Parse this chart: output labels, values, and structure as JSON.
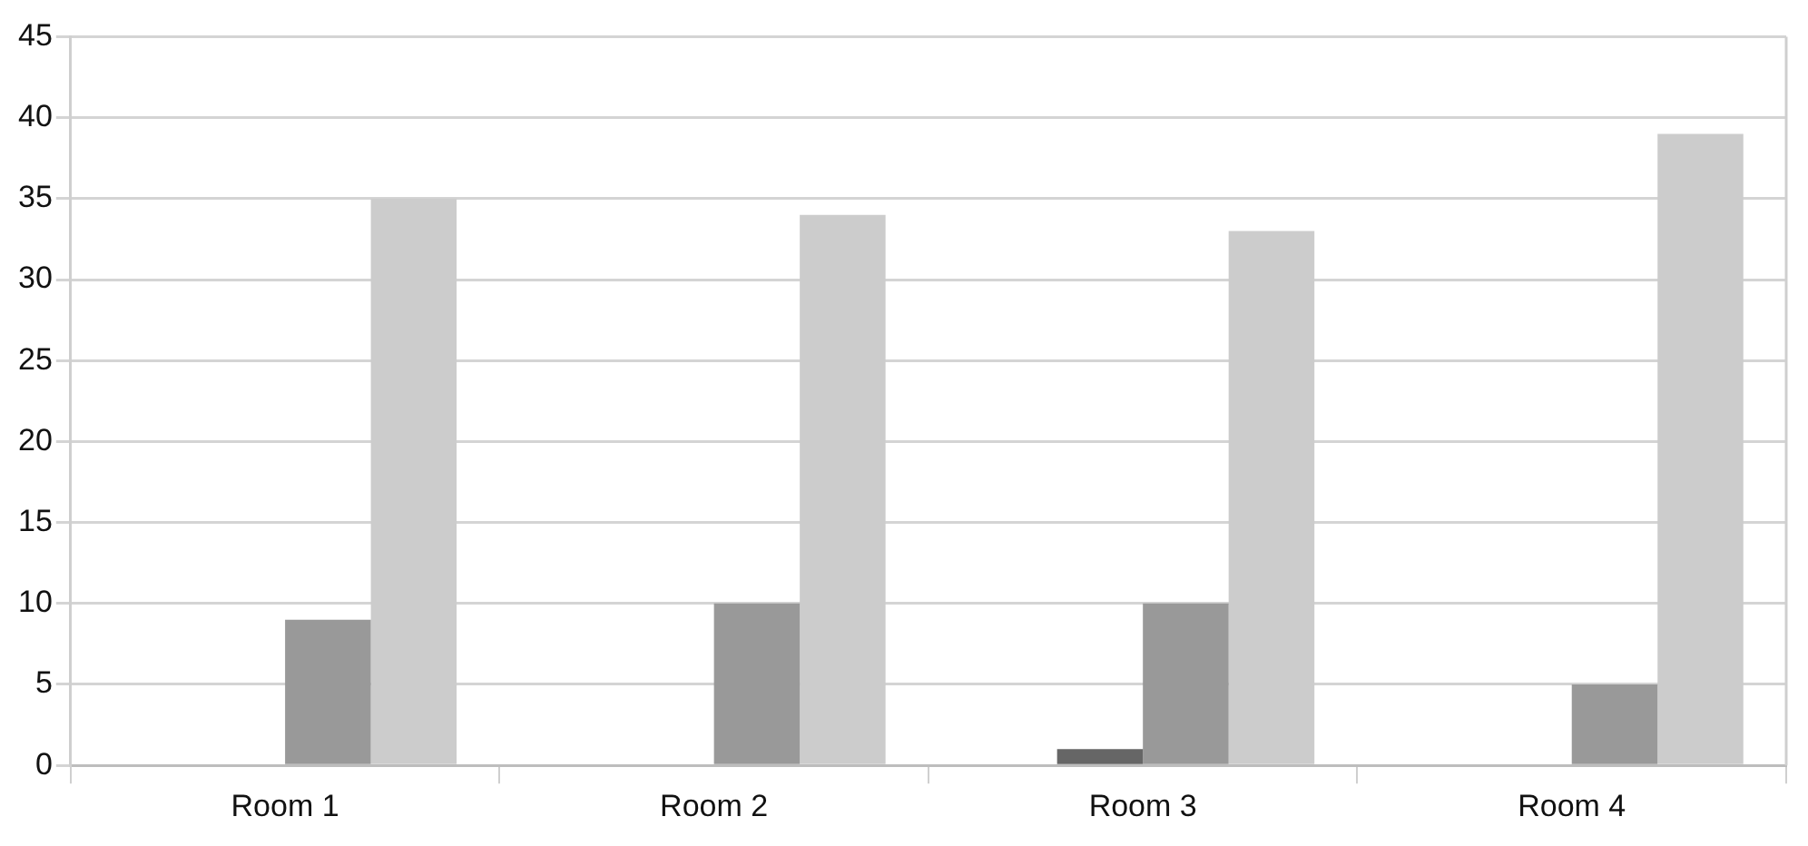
{
  "chart_data": {
    "type": "bar",
    "categories": [
      "Room 1",
      "Room 2",
      "Room 3",
      "Room 4"
    ],
    "series": [
      {
        "color": "#333333",
        "values": [
          0,
          0,
          0,
          0
        ]
      },
      {
        "color": "#666666",
        "values": [
          0,
          0,
          1,
          0
        ]
      },
      {
        "color": "#999999",
        "values": [
          9,
          10,
          10,
          5
        ]
      },
      {
        "color": "#cccccc",
        "values": [
          35,
          34,
          33,
          39
        ]
      }
    ],
    "ylim": [
      0,
      45
    ],
    "yticks": [
      0,
      5,
      10,
      15,
      20,
      25,
      30,
      35,
      40,
      45
    ],
    "grid": "y",
    "legend": false
  }
}
